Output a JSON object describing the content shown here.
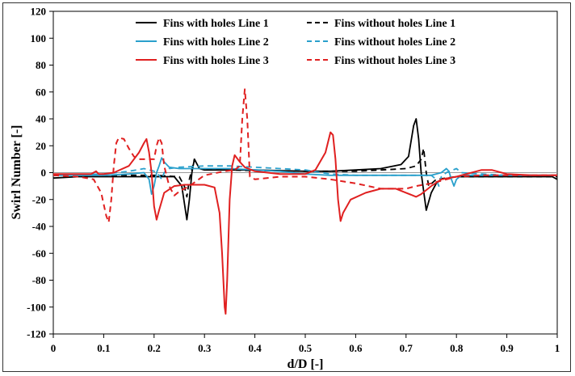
{
  "chart_data": {
    "type": "line",
    "xlabel": "d/D [-]",
    "ylabel": "Swirl Number [-]",
    "xlim": [
      0,
      1
    ],
    "ylim": [
      -120,
      120
    ],
    "xticks": [
      "0",
      "0.1",
      "0.2",
      "0.3",
      "0.4",
      "0.5",
      "0.6",
      "0.7",
      "0.8",
      "0.9",
      "1"
    ],
    "yticks": [
      "120",
      "100",
      "80",
      "60",
      "40",
      "20",
      "0",
      "-20",
      "-40",
      "-60",
      "-80",
      "-100",
      "-120"
    ],
    "grid": false,
    "legend_position": "top",
    "series": [
      {
        "name": "Fins with holes Line 1",
        "color": "#000000",
        "dash": "solid",
        "points": [
          [
            0,
            -4
          ],
          [
            0.05,
            -3
          ],
          [
            0.1,
            -3
          ],
          [
            0.15,
            -3
          ],
          [
            0.2,
            -3
          ],
          [
            0.24,
            -3
          ],
          [
            0.255,
            -10
          ],
          [
            0.265,
            -35
          ],
          [
            0.27,
            -20
          ],
          [
            0.275,
            0
          ],
          [
            0.28,
            10
          ],
          [
            0.29,
            3
          ],
          [
            0.3,
            2
          ],
          [
            0.35,
            2
          ],
          [
            0.4,
            2
          ],
          [
            0.45,
            1.5
          ],
          [
            0.5,
            1
          ],
          [
            0.55,
            1
          ],
          [
            0.6,
            2
          ],
          [
            0.65,
            3
          ],
          [
            0.69,
            6
          ],
          [
            0.705,
            12
          ],
          [
            0.715,
            35
          ],
          [
            0.72,
            40
          ],
          [
            0.725,
            25
          ],
          [
            0.73,
            0
          ],
          [
            0.74,
            -28
          ],
          [
            0.75,
            -15
          ],
          [
            0.76,
            -8
          ],
          [
            0.77,
            -5
          ],
          [
            0.8,
            -3
          ],
          [
            0.85,
            -3
          ],
          [
            0.9,
            -3
          ],
          [
            0.95,
            -3
          ],
          [
            0.99,
            -3
          ],
          [
            1,
            -5
          ]
        ]
      },
      {
        "name": "Fins without holes Line 1",
        "color": "#000000",
        "dash": "dash",
        "points": [
          [
            0,
            -2
          ],
          [
            0.1,
            -2
          ],
          [
            0.2,
            -2
          ],
          [
            0.25,
            -3
          ],
          [
            0.26,
            -10
          ],
          [
            0.265,
            -18
          ],
          [
            0.27,
            -5
          ],
          [
            0.28,
            10
          ],
          [
            0.29,
            3
          ],
          [
            0.35,
            2
          ],
          [
            0.4,
            1.5
          ],
          [
            0.5,
            1
          ],
          [
            0.6,
            1
          ],
          [
            0.65,
            2
          ],
          [
            0.7,
            3
          ],
          [
            0.72,
            5
          ],
          [
            0.73,
            10
          ],
          [
            0.735,
            18
          ],
          [
            0.74,
            0
          ],
          [
            0.745,
            -10
          ],
          [
            0.76,
            -5
          ],
          [
            0.8,
            -3
          ],
          [
            0.9,
            -3
          ],
          [
            1,
            -3
          ]
        ]
      },
      {
        "name": "Fins with holes Line 2",
        "color": "#2aa0cc",
        "dash": "solid",
        "points": [
          [
            0,
            -2
          ],
          [
            0.1,
            -2
          ],
          [
            0.15,
            -1
          ],
          [
            0.18,
            0
          ],
          [
            0.19,
            -5
          ],
          [
            0.195,
            -16
          ],
          [
            0.2,
            -10
          ],
          [
            0.205,
            0
          ],
          [
            0.21,
            5
          ],
          [
            0.215,
            11
          ],
          [
            0.22,
            8
          ],
          [
            0.23,
            4
          ],
          [
            0.25,
            3
          ],
          [
            0.3,
            3
          ],
          [
            0.35,
            3
          ],
          [
            0.4,
            2
          ],
          [
            0.45,
            1
          ],
          [
            0.5,
            -1
          ],
          [
            0.55,
            -2
          ],
          [
            0.6,
            -2
          ],
          [
            0.65,
            -2
          ],
          [
            0.7,
            -2
          ],
          [
            0.75,
            -2
          ],
          [
            0.77,
            0
          ],
          [
            0.78,
            3
          ],
          [
            0.785,
            1
          ],
          [
            0.79,
            -5
          ],
          [
            0.795,
            -10
          ],
          [
            0.8,
            -5
          ],
          [
            0.81,
            -2
          ],
          [
            0.85,
            -2
          ],
          [
            0.9,
            -2
          ],
          [
            1,
            -2
          ]
        ]
      },
      {
        "name": "Fins without holes Line 2",
        "color": "#2aa0cc",
        "dash": "dash",
        "points": [
          [
            0,
            -2
          ],
          [
            0.1,
            -1
          ],
          [
            0.15,
            1
          ],
          [
            0.18,
            3
          ],
          [
            0.2,
            1
          ],
          [
            0.21,
            -2
          ],
          [
            0.215,
            -5
          ],
          [
            0.22,
            0
          ],
          [
            0.23,
            3
          ],
          [
            0.25,
            4
          ],
          [
            0.3,
            5
          ],
          [
            0.35,
            5
          ],
          [
            0.4,
            4
          ],
          [
            0.45,
            3
          ],
          [
            0.5,
            2
          ],
          [
            0.55,
            -1
          ],
          [
            0.6,
            -2
          ],
          [
            0.7,
            -2
          ],
          [
            0.75,
            -2
          ],
          [
            0.76,
            -5
          ],
          [
            0.765,
            -10
          ],
          [
            0.77,
            -3
          ],
          [
            0.78,
            0
          ],
          [
            0.8,
            3
          ],
          [
            0.81,
            0
          ],
          [
            0.85,
            -1
          ],
          [
            0.9,
            -2
          ],
          [
            1,
            -2
          ]
        ]
      },
      {
        "name": "Fins with holes Line 3",
        "color": "#e02020",
        "dash": "solid",
        "points": [
          [
            0,
            -1
          ],
          [
            0.05,
            -1
          ],
          [
            0.075,
            -1
          ],
          [
            0.085,
            1
          ],
          [
            0.09,
            -1
          ],
          [
            0.1,
            -1
          ],
          [
            0.12,
            0
          ],
          [
            0.15,
            5
          ],
          [
            0.17,
            15
          ],
          [
            0.18,
            22
          ],
          [
            0.185,
            25
          ],
          [
            0.19,
            15
          ],
          [
            0.195,
            0
          ],
          [
            0.2,
            -25
          ],
          [
            0.205,
            -35
          ],
          [
            0.21,
            -28
          ],
          [
            0.22,
            -15
          ],
          [
            0.24,
            -10
          ],
          [
            0.26,
            -9
          ],
          [
            0.3,
            -9
          ],
          [
            0.32,
            -11
          ],
          [
            0.33,
            -30
          ],
          [
            0.335,
            -60
          ],
          [
            0.34,
            -100
          ],
          [
            0.342,
            -105
          ],
          [
            0.345,
            -80
          ],
          [
            0.35,
            -20
          ],
          [
            0.355,
            5
          ],
          [
            0.36,
            13
          ],
          [
            0.37,
            8
          ],
          [
            0.38,
            4
          ],
          [
            0.4,
            1
          ],
          [
            0.45,
            -1
          ],
          [
            0.5,
            -1
          ],
          [
            0.52,
            2
          ],
          [
            0.54,
            15
          ],
          [
            0.55,
            30
          ],
          [
            0.555,
            28
          ],
          [
            0.56,
            10
          ],
          [
            0.565,
            -20
          ],
          [
            0.57,
            -36
          ],
          [
            0.575,
            -30
          ],
          [
            0.59,
            -20
          ],
          [
            0.62,
            -15
          ],
          [
            0.65,
            -12
          ],
          [
            0.68,
            -12
          ],
          [
            0.7,
            -15
          ],
          [
            0.72,
            -18
          ],
          [
            0.73,
            -16
          ],
          [
            0.75,
            -10
          ],
          [
            0.77,
            -5
          ],
          [
            0.8,
            -3
          ],
          [
            0.85,
            2
          ],
          [
            0.87,
            2
          ],
          [
            0.9,
            -1
          ],
          [
            0.95,
            -2
          ],
          [
            1,
            -2
          ]
        ]
      },
      {
        "name": "Fins without holes Line 3",
        "color": "#e02020",
        "dash": "dash",
        "points": [
          [
            0,
            -2
          ],
          [
            0.05,
            -3
          ],
          [
            0.08,
            -5
          ],
          [
            0.095,
            -15
          ],
          [
            0.105,
            -32
          ],
          [
            0.11,
            -37
          ],
          [
            0.115,
            -20
          ],
          [
            0.12,
            5
          ],
          [
            0.125,
            22
          ],
          [
            0.13,
            26
          ],
          [
            0.14,
            25
          ],
          [
            0.15,
            18
          ],
          [
            0.16,
            12
          ],
          [
            0.17,
            10
          ],
          [
            0.2,
            10
          ],
          [
            0.205,
            20
          ],
          [
            0.21,
            26
          ],
          [
            0.215,
            22
          ],
          [
            0.22,
            5
          ],
          [
            0.23,
            -10
          ],
          [
            0.24,
            -17
          ],
          [
            0.25,
            -14
          ],
          [
            0.26,
            -12
          ],
          [
            0.27,
            -10
          ],
          [
            0.3,
            -2
          ],
          [
            0.34,
            1
          ],
          [
            0.36,
            2
          ],
          [
            0.37,
            5
          ],
          [
            0.375,
            40
          ],
          [
            0.38,
            62
          ],
          [
            0.385,
            40
          ],
          [
            0.39,
            -3
          ],
          [
            0.4,
            -5
          ],
          [
            0.45,
            -3
          ],
          [
            0.5,
            -3
          ],
          [
            0.55,
            -5
          ],
          [
            0.6,
            -8
          ],
          [
            0.65,
            -12
          ],
          [
            0.7,
            -12
          ],
          [
            0.72,
            -10
          ],
          [
            0.75,
            -8
          ],
          [
            0.8,
            -3
          ],
          [
            0.85,
            -2
          ],
          [
            0.9,
            -2
          ],
          [
            1,
            -2
          ]
        ]
      }
    ]
  }
}
